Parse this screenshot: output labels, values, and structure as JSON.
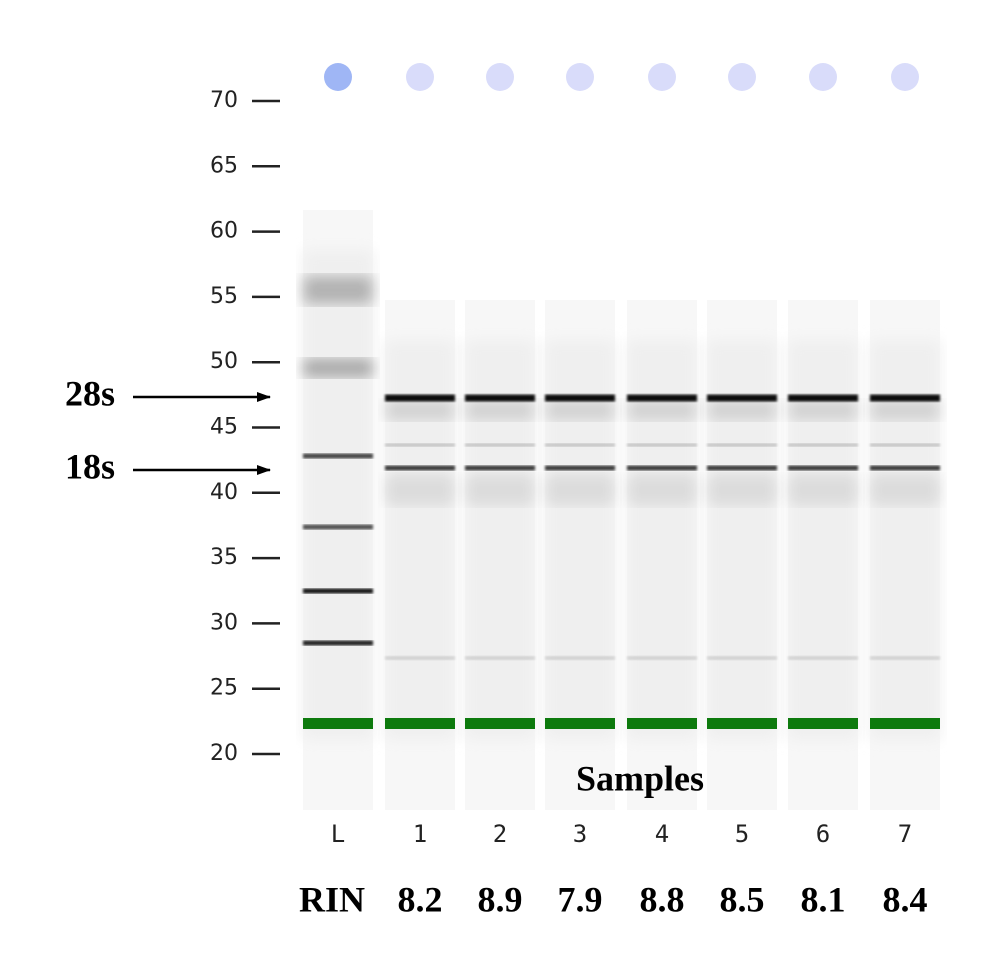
{
  "axis": {
    "ticks": [
      70,
      65,
      60,
      55,
      50,
      45,
      40,
      35,
      30,
      25,
      20
    ]
  },
  "markers": [
    {
      "label": "28s"
    },
    {
      "label": "18s"
    }
  ],
  "samples_label": "Samples",
  "lanes": [
    {
      "label": "L"
    },
    {
      "label": "1"
    },
    {
      "label": "2"
    },
    {
      "label": "3"
    },
    {
      "label": "4"
    },
    {
      "label": "5"
    },
    {
      "label": "6"
    },
    {
      "label": "7"
    }
  ],
  "rin": {
    "label": "RIN",
    "values": [
      8.2,
      8.9,
      7.9,
      8.8,
      8.5,
      8.1,
      8.4
    ]
  }
}
